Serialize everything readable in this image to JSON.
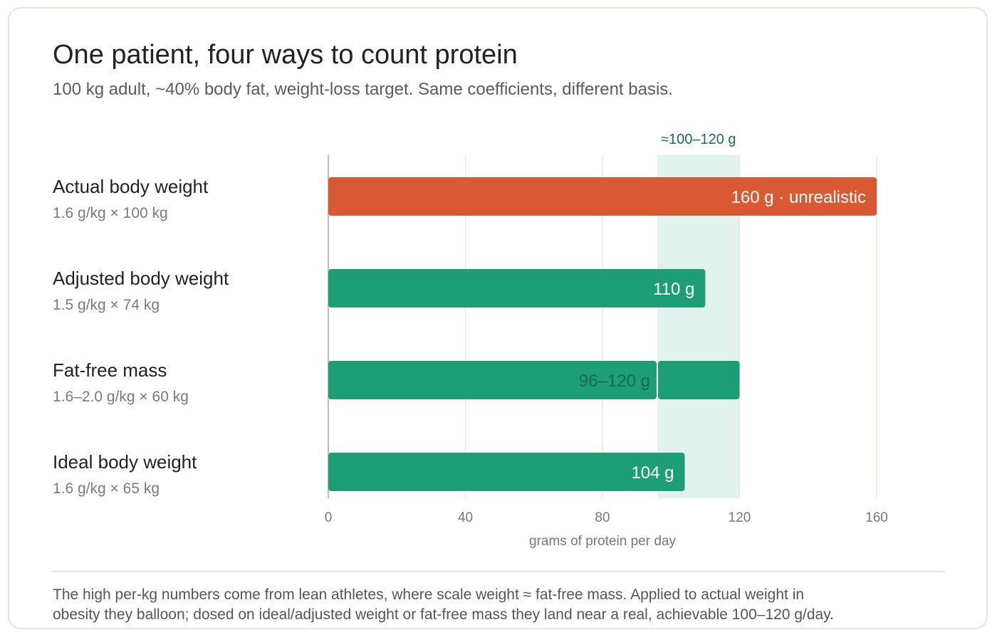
{
  "header": {
    "title": "One patient, four ways to count protein",
    "subtitle": "100 kg adult, ~40% body fat, weight-loss target. Same coefficients, different basis."
  },
  "chart_data": {
    "type": "bar",
    "orientation": "horizontal",
    "xlabel": "grams of protein per day",
    "xlim": [
      0,
      160
    ],
    "xticks": [
      0,
      40,
      80,
      120,
      160
    ],
    "grid": true,
    "target_band": {
      "from": 96,
      "to": 120,
      "label": "≈100–120 g"
    },
    "categories": [
      {
        "name": "Actual body weight",
        "basis": "1.6 g/kg × 100 kg",
        "value": 160,
        "label": "160 g · unrealistic",
        "status": "unrealistic"
      },
      {
        "name": "Adjusted body weight",
        "basis": "1.5 g/kg × 74 kg",
        "value": 110,
        "label": "110 g",
        "status": "ok"
      },
      {
        "name": "Fat-free mass",
        "basis": "1.6–2.0 g/kg × 60 kg",
        "value": 96,
        "value_high": 120,
        "label": "96–120 g",
        "status": "ok"
      },
      {
        "name": "Ideal body weight",
        "basis": "1.6 g/kg × 65 kg",
        "value": 104,
        "label": "104 g",
        "status": "ok"
      }
    ]
  },
  "colors": {
    "unrealistic": "#d95a32",
    "ok": "#1e9e76",
    "band": "#e0f3ec",
    "band_label": "#1a6e58",
    "grid": "#ecebdf",
    "axis": "#bdbdb3",
    "range_label": "#166b52"
  },
  "footnote": {
    "line1": "The high per-kg numbers come from lean athletes, where scale weight ≈ fat-free mass. Applied to actual weight in",
    "line2": "obesity they balloon; dosed on ideal/adjusted weight or fat-free mass they land near a real, achievable 100–120 g/day."
  }
}
